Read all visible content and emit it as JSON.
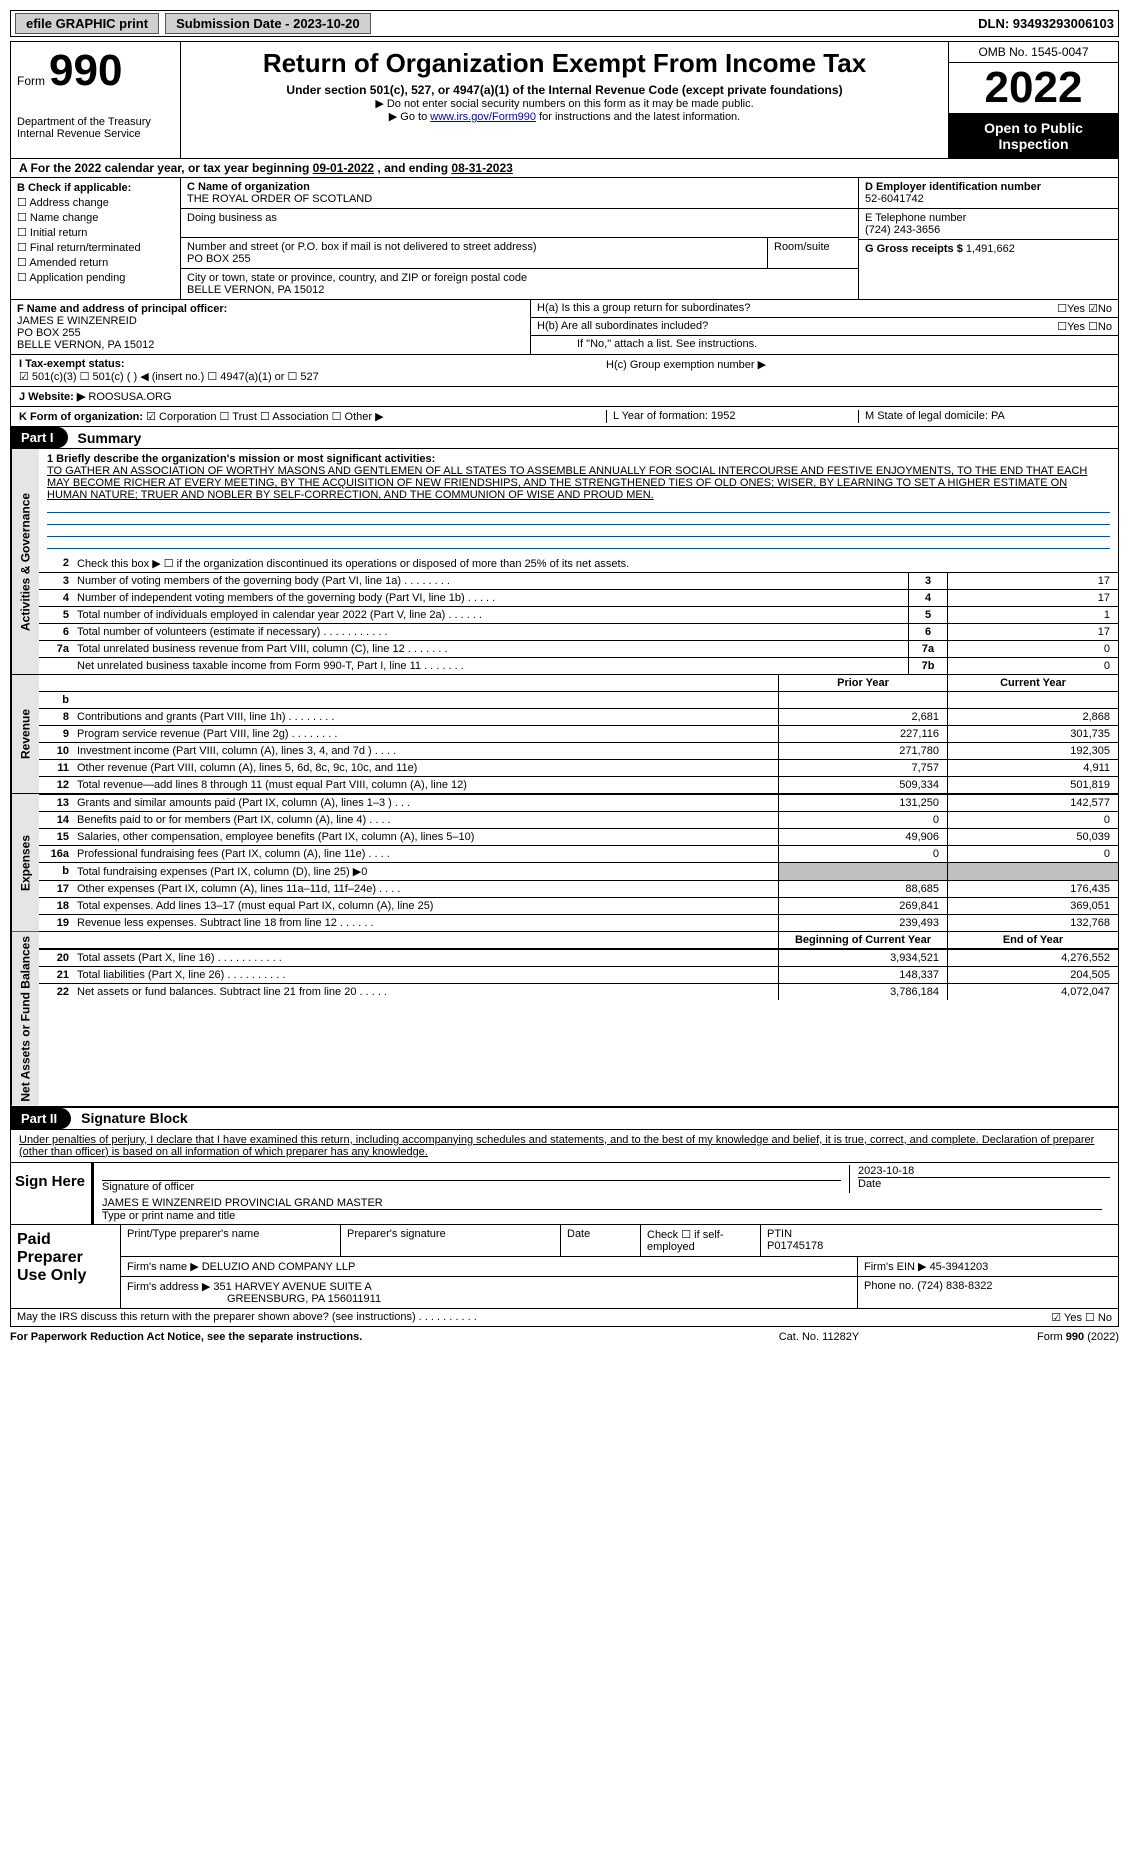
{
  "topbar": {
    "efile_label": "efile GRAPHIC print",
    "submission_date": "Submission Date - 2023-10-20",
    "dln": "DLN: 93493293006103"
  },
  "header": {
    "form_label": "Form",
    "form_number": "990",
    "dept": "Department of the Treasury\nInternal Revenue Service",
    "title": "Return of Organization Exempt From Income Tax",
    "subtitle": "Under section 501(c), 527, or 4947(a)(1) of the Internal Revenue Code (except private foundations)",
    "note1": "Do not enter social security numbers on this form as it may be made public.",
    "note2_pre": "Go to ",
    "note2_link": "www.irs.gov/Form990",
    "note2_post": " for instructions and the latest information.",
    "omb": "OMB No. 1545-0047",
    "year": "2022",
    "open_public": "Open to Public Inspection"
  },
  "lineA": {
    "pre": "A For the 2022 calendar year, or tax year beginning ",
    "begin": "09-01-2022",
    "mid": " , and ending ",
    "end": "08-31-2023"
  },
  "colB": {
    "head": "B Check if applicable:",
    "items": [
      "Address change",
      "Name change",
      "Initial return",
      "Final return/terminated",
      "Amended return",
      "Application pending"
    ]
  },
  "colC": {
    "name_label": "C Name of organization",
    "name": "THE ROYAL ORDER OF SCOTLAND",
    "dba_label": "Doing business as",
    "street_label": "Number and street (or P.O. box if mail is not delivered to street address)",
    "street": "PO BOX 255",
    "room_label": "Room/suite",
    "city_label": "City or town, state or province, country, and ZIP or foreign postal code",
    "city": "BELLE VERNON, PA   15012"
  },
  "colD": {
    "ein_label": "D Employer identification number",
    "ein": "52-6041742",
    "phone_label": "E Telephone number",
    "phone": "(724) 243-3656",
    "gross_label": "G Gross receipts $ ",
    "gross": "1,491,662"
  },
  "f": {
    "label": "F Name and address of principal officer:",
    "name": "JAMES E WINZENREID",
    "addr1": "PO BOX 255",
    "addr2": "BELLE VERNON, PA   15012"
  },
  "h": {
    "a": "H(a)   Is this a group return for subordinates?",
    "a_yn": "☐Yes  ☑No",
    "b": "H(b)   Are all subordinates included?",
    "b_yn": "☐Yes  ☐No",
    "b_note": "If \"No,\" attach a list. See instructions.",
    "c": "H(c)   Group exemption number ▶"
  },
  "i": {
    "label": "I     Tax-exempt status:",
    "opts": "☑ 501(c)(3)    ☐ 501(c) (  ) ◀ (insert no.)    ☐ 4947(a)(1) or    ☐ 527"
  },
  "j": {
    "label": "J    Website: ▶ ",
    "val": "ROOSUSA.ORG"
  },
  "k": {
    "label": "K Form of organization:",
    "opts": " ☑ Corporation  ☐ Trust  ☐ Association  ☐ Other ▶"
  },
  "l": {
    "text": "L Year of formation: 1952"
  },
  "m": {
    "text": "M State of legal domicile: PA"
  },
  "part1": {
    "tab": "Part I",
    "title": "Summary"
  },
  "mission": {
    "line1": "1   Briefly describe the organization's mission or most significant activities:",
    "text": "TO GATHER AN ASSOCIATION OF WORTHY MASONS AND GENTLEMEN OF ALL STATES TO ASSEMBLE ANNUALLY FOR SOCIAL INTERCOURSE AND FESTIVE ENJOYMENTS, TO THE END THAT EACH MAY BECOME RICHER AT EVERY MEETING, BY THE ACQUISITION OF NEW FRIENDSHIPS, AND THE STRENGTHENED TIES OF OLD ONES; WISER, BY LEARNING TO SET A HIGHER ESTIMATE ON HUMAN NATURE; TRUER AND NOBLER BY SELF-CORRECTION, AND THE COMMUNION OF WISE AND PROUD MEN."
  },
  "vtabs": {
    "gov": "Activities & Governance",
    "rev": "Revenue",
    "exp": "Expenses",
    "net": "Net Assets or Fund Balances"
  },
  "gov_rows": [
    {
      "n": "2",
      "t": "Check this box ▶ ☐  if the organization discontinued its operations or disposed of more than 25% of its net assets.",
      "k": "",
      "v": ""
    },
    {
      "n": "3",
      "t": "Number of voting members of the governing body (Part VI, line 1a)   .   .   .   .   .   .   .   .",
      "k": "3",
      "v": "17"
    },
    {
      "n": "4",
      "t": "Number of independent voting members of the governing body (Part VI, line 1b)   .   .   .   .   .",
      "k": "4",
      "v": "17"
    },
    {
      "n": "5",
      "t": "Total number of individuals employed in calendar year 2022 (Part V, line 2a)   .   .   .   .   .   .",
      "k": "5",
      "v": "1"
    },
    {
      "n": "6",
      "t": "Total number of volunteers (estimate if necessary)   .   .   .   .   .   .   .   .   .   .   .",
      "k": "6",
      "v": "17"
    },
    {
      "n": "7a",
      "t": "Total unrelated business revenue from Part VIII, column (C), line 12   .   .   .   .   .   .   .",
      "k": "7a",
      "v": "0"
    },
    {
      "n": "",
      "t": "Net unrelated business taxable income from Form 990-T, Part I, line 11   .   .   .   .   .   .   .",
      "k": "7b",
      "v": "0"
    }
  ],
  "col_headers": {
    "prior": "Prior Year",
    "current": "Current Year",
    "begin": "Beginning of Current Year",
    "end": "End of Year"
  },
  "rev_rows": [
    {
      "n": "b",
      "t": "",
      "v1": "",
      "v2": ""
    },
    {
      "n": "8",
      "t": "Contributions and grants (Part VIII, line 1h)   .   .   .   .   .   .   .   .",
      "v1": "2,681",
      "v2": "2,868"
    },
    {
      "n": "9",
      "t": "Program service revenue (Part VIII, line 2g)   .   .   .   .   .   .   .   .",
      "v1": "227,116",
      "v2": "301,735"
    },
    {
      "n": "10",
      "t": "Investment income (Part VIII, column (A), lines 3, 4, and 7d )   .   .   .   .",
      "v1": "271,780",
      "v2": "192,305"
    },
    {
      "n": "11",
      "t": "Other revenue (Part VIII, column (A), lines 5, 6d, 8c, 9c, 10c, and 11e)",
      "v1": "7,757",
      "v2": "4,911"
    },
    {
      "n": "12",
      "t": "Total revenue—add lines 8 through 11 (must equal Part VIII, column (A), line 12)",
      "v1": "509,334",
      "v2": "501,819"
    }
  ],
  "exp_rows": [
    {
      "n": "13",
      "t": "Grants and similar amounts paid (Part IX, column (A), lines 1–3 )   .   .   .",
      "v1": "131,250",
      "v2": "142,577"
    },
    {
      "n": "14",
      "t": "Benefits paid to or for members (Part IX, column (A), line 4)   .   .   .   .",
      "v1": "0",
      "v2": "0"
    },
    {
      "n": "15",
      "t": "Salaries, other compensation, employee benefits (Part IX, column (A), lines 5–10)",
      "v1": "49,906",
      "v2": "50,039"
    },
    {
      "n": "16a",
      "t": "Professional fundraising fees (Part IX, column (A), line 11e)   .   .   .   .",
      "v1": "0",
      "v2": "0"
    },
    {
      "n": "b",
      "t": "Total fundraising expenses (Part IX, column (D), line 25) ▶0",
      "v1": "",
      "v2": "",
      "gray": true
    },
    {
      "n": "17",
      "t": "Other expenses (Part IX, column (A), lines 11a–11d, 11f–24e)   .   .   .   .",
      "v1": "88,685",
      "v2": "176,435"
    },
    {
      "n": "18",
      "t": "Total expenses. Add lines 13–17 (must equal Part IX, column (A), line 25)",
      "v1": "269,841",
      "v2": "369,051"
    },
    {
      "n": "19",
      "t": "Revenue less expenses. Subtract line 18 from line 12   .   .   .   .   .   .",
      "v1": "239,493",
      "v2": "132,768"
    }
  ],
  "net_rows": [
    {
      "n": "20",
      "t": "Total assets (Part X, line 16)   .   .   .   .   .   .   .   .   .   .   .",
      "v1": "3,934,521",
      "v2": "4,276,552"
    },
    {
      "n": "21",
      "t": "Total liabilities (Part X, line 26)   .   .   .   .   .   .   .   .   .   .",
      "v1": "148,337",
      "v2": "204,505"
    },
    {
      "n": "22",
      "t": "Net assets or fund balances. Subtract line 21 from line 20   .   .   .   .   .",
      "v1": "3,786,184",
      "v2": "4,072,047"
    }
  ],
  "part2": {
    "tab": "Part II",
    "title": "Signature Block"
  },
  "penalties": "Under penalties of perjury, I declare that I have examined this return, including accompanying schedules and statements, and to the best of my knowledge and belief, it is true, correct, and complete. Declaration of preparer (other than officer) is based on all information of which preparer has any knowledge.",
  "sign": {
    "here": "Sign Here",
    "sig_label": "Signature of officer",
    "date": "2023-10-18",
    "date_label": "Date",
    "name": "JAMES E WINZENREID  PROVINCIAL GRAND MASTER",
    "name_label": "Type or print name and title"
  },
  "prep": {
    "label": "Paid Preparer Use Only",
    "h1": "Print/Type preparer's name",
    "h2": "Preparer's signature",
    "h3": "Date",
    "h4": "Check ☐ if self-employed",
    "h5": "PTIN",
    "ptin": "P01745178",
    "firm_name_l": "Firm's name    ▶ ",
    "firm_name": "DELUZIO AND COMPANY LLP",
    "firm_ein_l": "Firm's EIN ▶ ",
    "firm_ein": "45-3941203",
    "firm_addr_l": "Firm's address ▶ ",
    "firm_addr": "351 HARVEY AVENUE SUITE A",
    "firm_addr2": "GREENSBURG, PA   156011911",
    "phone_l": "Phone no. ",
    "phone": "(724) 838-8322"
  },
  "may_irs": {
    "text": "May the IRS discuss this return with the preparer shown above? (see instructions)   .   .   .   .   .   .   .   .   .   .",
    "yn": "☑ Yes  ☐ No"
  },
  "footer": {
    "l": "For Paperwork Reduction Act Notice, see the separate instructions.",
    "m": "Cat. No. 11282Y",
    "r": "Form 990 (2022)"
  }
}
